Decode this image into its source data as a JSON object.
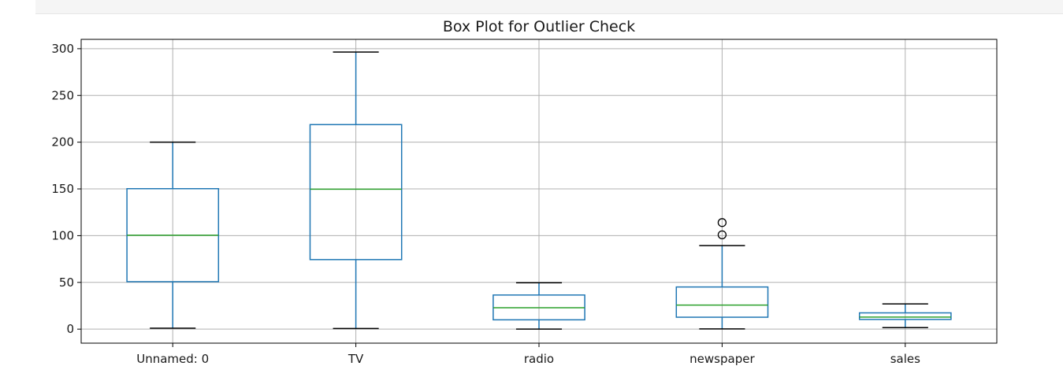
{
  "chart_data": {
    "type": "box",
    "title": "Box Plot for Outlier Check",
    "xlabel": "",
    "ylabel": "",
    "ylim": [
      -15,
      310
    ],
    "yticks": [
      0,
      50,
      100,
      150,
      200,
      250,
      300
    ],
    "grid": true,
    "colors": {
      "box": "#1f77b4",
      "median": "#2ca02c",
      "whisker_cap": "#000000",
      "grid": "#b0b0b0",
      "flier": "#000000"
    },
    "series": [
      {
        "name": "Unnamed: 0",
        "whisker_low": 1,
        "q1": 50.75,
        "median": 100.5,
        "q3": 150.25,
        "whisker_high": 200,
        "outliers": []
      },
      {
        "name": "TV",
        "whisker_low": 0.7,
        "q1": 74.4,
        "median": 149.75,
        "q3": 218.8,
        "whisker_high": 296.4,
        "outliers": []
      },
      {
        "name": "radio",
        "whisker_low": 0,
        "q1": 9.975,
        "median": 22.9,
        "q3": 36.5,
        "whisker_high": 49.6,
        "outliers": []
      },
      {
        "name": "newspaper",
        "whisker_low": 0.3,
        "q1": 12.75,
        "median": 25.75,
        "q3": 45.1,
        "whisker_high": 89.4,
        "outliers": [
          100.9,
          114
        ]
      },
      {
        "name": "sales",
        "whisker_low": 1.6,
        "q1": 10.375,
        "median": 12.9,
        "q3": 17.4,
        "whisker_high": 27,
        "outliers": []
      }
    ]
  }
}
